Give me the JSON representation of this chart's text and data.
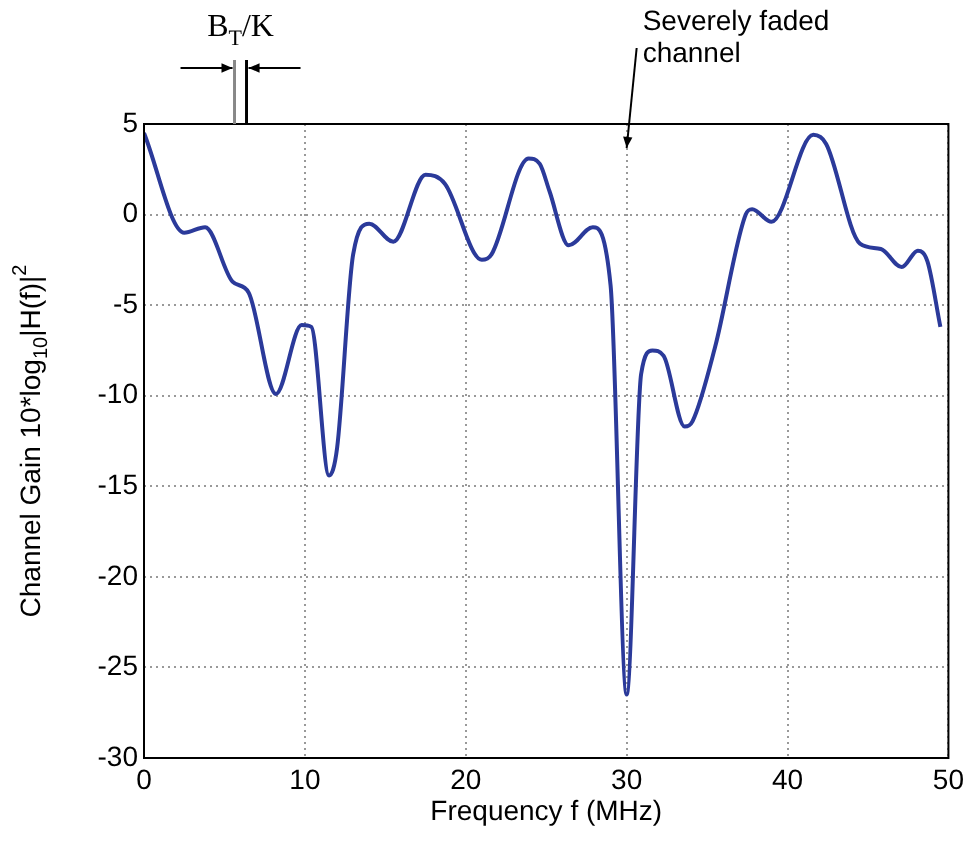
{
  "chart_data": {
    "type": "line",
    "xlabel": "Frequency f (MHz)",
    "ylabel": "Channel Gain 10*log$_{10}$|H(f)|$^{2}$",
    "x": [
      0,
      2.5,
      3.8,
      5.5,
      6.5,
      8.2,
      9.8,
      10.4,
      11.5,
      12,
      13,
      14,
      15.5,
      17.5,
      18.7,
      21,
      21.6,
      23.9,
      24.6,
      25.2,
      26.4,
      27.9,
      29,
      30,
      30.9,
      31.6,
      32.3,
      33.6,
      34.1,
      35.5,
      37.4,
      37.8,
      39,
      41.6,
      42.4,
      44.5,
      45.8,
      47.1,
      48.1,
      48.7,
      49.5
    ],
    "series": [
      {
        "color": "#2b3a9a",
        "values": [
          4.5,
          -1.0,
          -0.7,
          -3.7,
          -4.3,
          -9.9,
          -6.1,
          -6.2,
          -14.4,
          -12.9,
          -2.2,
          -0.5,
          -1.5,
          2.2,
          1.7,
          -2.5,
          -2.2,
          3.1,
          2.8,
          1.3,
          -1.7,
          -0.7,
          -3.9,
          -26.5,
          -8.8,
          -7.5,
          -7.8,
          -11.7,
          -11.4,
          -7.3,
          0,
          0.3,
          -0.4,
          4.4,
          3.9,
          -1.6,
          -1.9,
          -2.9,
          -2.0,
          -2.6,
          -6.2
        ]
      }
    ],
    "xlim": [
      0,
      50
    ],
    "xticks": [
      0,
      10,
      20,
      30,
      40,
      50
    ],
    "ylim": [
      -30,
      5
    ],
    "yticks": [
      -30,
      -25,
      -20,
      -15,
      -10,
      -5,
      0,
      5
    ],
    "grid": true,
    "marker": "none",
    "line_style": "solid",
    "annotations": [
      "B$_{T}$/K",
      "Severely faded channel"
    ]
  }
}
